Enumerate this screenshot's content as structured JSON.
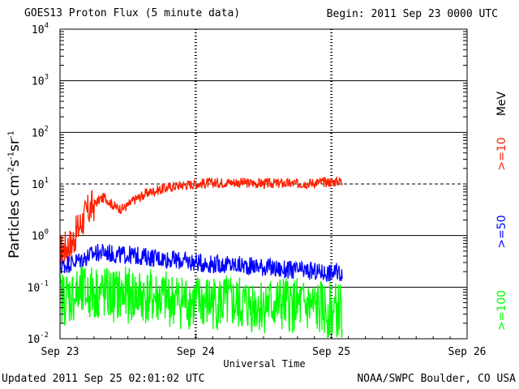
{
  "header": {
    "title": "GOES13 Proton Flux (5 minute data)",
    "begin": "Begin: 2011 Sep 23 0000 UTC"
  },
  "footer": {
    "updated": "Updated 2011 Sep 25 02:01:02 UTC",
    "credit": "NOAA/SWPC Boulder, CO USA"
  },
  "chart_data": {
    "type": "line",
    "title": "GOES13 Proton Flux (5 minute data)",
    "xlabel": "Universal Time",
    "ylabel": "Particles cm-2s-1sr-1",
    "yscale": "log",
    "ylim": [
      0.01,
      10000
    ],
    "ytick_exponents": [
      -2,
      -1,
      0,
      1,
      2,
      3,
      4
    ],
    "xlim": [
      "2011-09-23 00:00",
      "2011-09-26 00:00"
    ],
    "xtick_labels": [
      "Sep 23",
      "Sep 24",
      "Sep 25",
      "Sep 26"
    ],
    "grid": true,
    "reference_line": 10,
    "energy_unit_label": "MeV",
    "series": [
      {
        "name": ">=10",
        "color": "#ff2000",
        "x_hours": [
          0,
          1,
          2,
          3,
          4,
          5,
          6,
          7,
          8,
          9,
          10,
          11,
          12,
          13,
          14,
          15,
          16,
          18,
          20,
          22,
          24,
          27,
          30,
          33,
          36,
          39,
          42,
          45,
          48,
          50
        ],
        "values": [
          0.5,
          0.6,
          0.7,
          1.2,
          2.0,
          3.0,
          4.0,
          5.0,
          5.5,
          4.2,
          3.5,
          3.3,
          3.8,
          4.8,
          5.5,
          6.3,
          7.0,
          8.0,
          9.0,
          9.6,
          10.0,
          10.5,
          10.8,
          10.5,
          10.2,
          10.3,
          10.1,
          10.6,
          11.0,
          11.5
        ]
      },
      {
        "name": ">=50",
        "color": "#0000ff",
        "x_hours": [
          0,
          2,
          4,
          6,
          8,
          10,
          12,
          14,
          16,
          18,
          20,
          22,
          24,
          27,
          30,
          33,
          36,
          39,
          42,
          45,
          48,
          50
        ],
        "values": [
          0.25,
          0.3,
          0.35,
          0.45,
          0.48,
          0.42,
          0.42,
          0.4,
          0.38,
          0.36,
          0.34,
          0.32,
          0.3,
          0.28,
          0.27,
          0.26,
          0.25,
          0.22,
          0.21,
          0.2,
          0.19,
          0.2
        ]
      },
      {
        "name": ">=100",
        "color": "#00ff00",
        "x_hours": [
          0,
          3,
          6,
          9,
          12,
          15,
          18,
          21,
          24,
          28,
          32,
          36,
          40,
          44,
          48,
          50
        ],
        "values": [
          0.06,
          0.07,
          0.08,
          0.07,
          0.07,
          0.065,
          0.06,
          0.055,
          0.05,
          0.05,
          0.045,
          0.045,
          0.045,
          0.04,
          0.035,
          0.035
        ]
      }
    ]
  }
}
